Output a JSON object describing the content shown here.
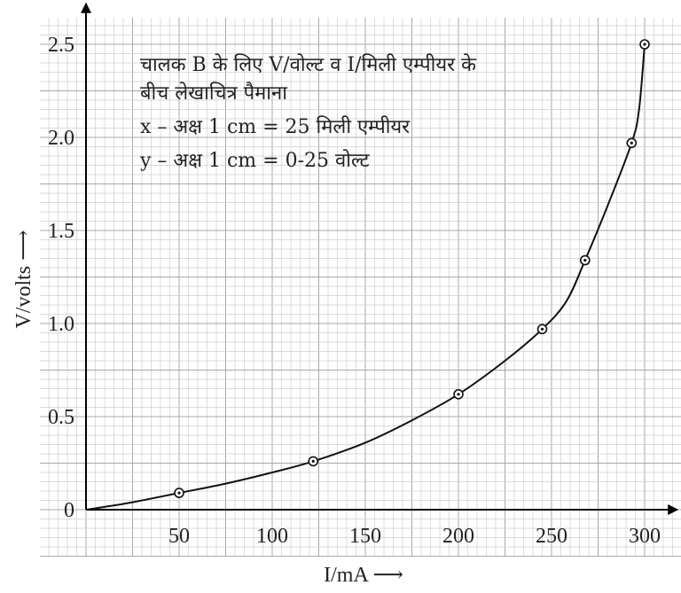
{
  "chart_data": {
    "type": "line",
    "title": "",
    "xlabel": "I/mA ⟶",
    "ylabel": "V/volts ⟶",
    "x_ticks": [
      "50",
      "100",
      "150",
      "200",
      "250",
      "300"
    ],
    "y_ticks": [
      "0",
      "0.5",
      "1.0",
      "1.5",
      "2.0",
      "2.5"
    ],
    "xlim": [
      0,
      320
    ],
    "ylim": [
      0,
      2.65
    ],
    "grid": true,
    "legend": "none",
    "annotations": [
      "चालक B के लिए V/वोल्ट व I/मिली एम्पीयर के",
      "बीच लेखाचित्र पैमाना",
      "x – अक्ष 1 cm = 25 मिली एम्पीयर",
      "y – अक्ष 1 cm = 0-25 वोल्ट"
    ],
    "series": [
      {
        "points": [
          {
            "x": 50,
            "y": 0.09
          },
          {
            "x": 122,
            "y": 0.26
          },
          {
            "x": 200,
            "y": 0.62
          },
          {
            "x": 245,
            "y": 0.97
          },
          {
            "x": 268,
            "y": 1.34
          },
          {
            "x": 293,
            "y": 1.97
          },
          {
            "x": 300,
            "y": 2.5
          }
        ],
        "curve": [
          [
            0,
            0
          ],
          [
            10,
            0.015
          ],
          [
            25,
            0.04
          ],
          [
            50,
            0.09
          ],
          [
            75,
            0.14
          ],
          [
            100,
            0.2
          ],
          [
            122,
            0.26
          ],
          [
            150,
            0.36
          ],
          [
            175,
            0.48
          ],
          [
            200,
            0.62
          ],
          [
            225,
            0.8
          ],
          [
            245,
            0.97
          ],
          [
            258,
            1.12
          ],
          [
            268,
            1.34
          ],
          [
            280,
            1.63
          ],
          [
            293,
            1.97
          ],
          [
            297,
            2.15
          ],
          [
            300,
            2.5
          ]
        ]
      }
    ],
    "colors": {
      "line": "#111111",
      "grid_minor": "#cfcfcf",
      "grid_major": "#a8a8a8",
      "axis": "#000000"
    }
  }
}
